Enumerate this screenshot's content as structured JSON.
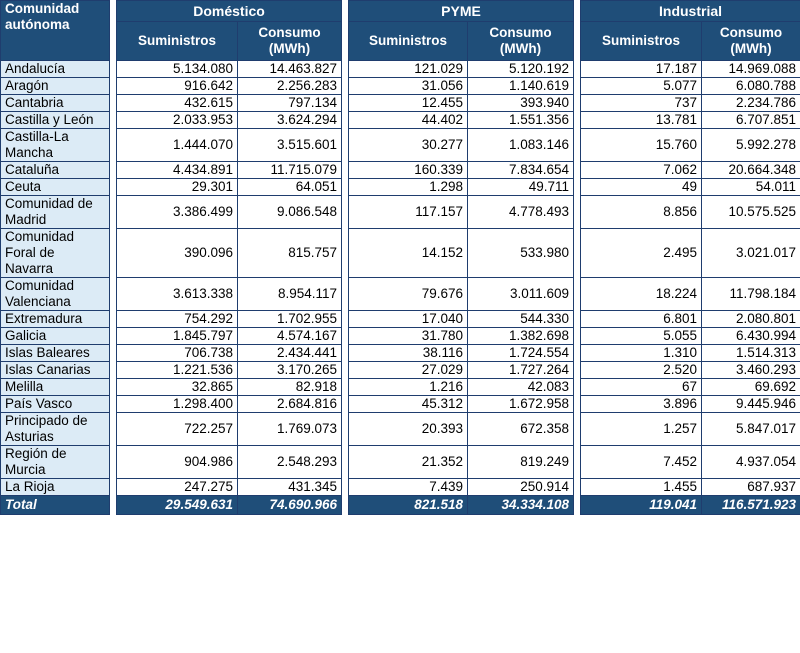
{
  "header": {
    "region_col": "Comunidad autónoma",
    "groups": [
      "Doméstico",
      "PYME",
      "Industrial"
    ],
    "sub_suministros": "Suministros",
    "sub_consumo": "Consumo (MWh)"
  },
  "rows": [
    {
      "region": "Andalucía",
      "values": [
        "5.134.080",
        "14.463.827",
        "121.029",
        "5.120.192",
        "17.187",
        "14.969.088"
      ]
    },
    {
      "region": "Aragón",
      "values": [
        "916.642",
        "2.256.283",
        "31.056",
        "1.140.619",
        "5.077",
        "6.080.788"
      ]
    },
    {
      "region": "Cantabria",
      "values": [
        "432.615",
        "797.134",
        "12.455",
        "393.940",
        "737",
        "2.234.786"
      ]
    },
    {
      "region": "Castilla y León",
      "values": [
        "2.033.953",
        "3.624.294",
        "44.402",
        "1.551.356",
        "13.781",
        "6.707.851"
      ]
    },
    {
      "region": "Castilla-La Mancha",
      "values": [
        "1.444.070",
        "3.515.601",
        "30.277",
        "1.083.146",
        "15.760",
        "5.992.278"
      ]
    },
    {
      "region": "Cataluña",
      "values": [
        "4.434.891",
        "11.715.079",
        "160.339",
        "7.834.654",
        "7.062",
        "20.664.348"
      ]
    },
    {
      "region": "Ceuta",
      "values": [
        "29.301",
        "64.051",
        "1.298",
        "49.711",
        "49",
        "54.011"
      ]
    },
    {
      "region": "Comunidad de Madrid",
      "values": [
        "3.386.499",
        "9.086.548",
        "117.157",
        "4.778.493",
        "8.856",
        "10.575.525"
      ]
    },
    {
      "region": "Comunidad Foral de Navarra",
      "values": [
        "390.096",
        "815.757",
        "14.152",
        "533.980",
        "2.495",
        "3.021.017"
      ]
    },
    {
      "region": "Comunidad Valenciana",
      "values": [
        "3.613.338",
        "8.954.117",
        "79.676",
        "3.011.609",
        "18.224",
        "11.798.184"
      ]
    },
    {
      "region": "Extremadura",
      "values": [
        "754.292",
        "1.702.955",
        "17.040",
        "544.330",
        "6.801",
        "2.080.801"
      ]
    },
    {
      "region": "Galicia",
      "values": [
        "1.845.797",
        "4.574.167",
        "31.780",
        "1.382.698",
        "5.055",
        "6.430.994"
      ]
    },
    {
      "region": "Islas Baleares",
      "values": [
        "706.738",
        "2.434.441",
        "38.116",
        "1.724.554",
        "1.310",
        "1.514.313"
      ]
    },
    {
      "region": "Islas Canarias",
      "values": [
        "1.221.536",
        "3.170.265",
        "27.029",
        "1.727.264",
        "2.520",
        "3.460.293"
      ]
    },
    {
      "region": "Melilla",
      "values": [
        "32.865",
        "82.918",
        "1.216",
        "42.083",
        "67",
        "69.692"
      ]
    },
    {
      "region": "País Vasco",
      "values": [
        "1.298.400",
        "2.684.816",
        "45.312",
        "1.672.958",
        "3.896",
        "9.445.946"
      ]
    },
    {
      "region": "Principado de Asturias",
      "values": [
        "722.257",
        "1.769.073",
        "20.393",
        "672.358",
        "1.257",
        "5.847.017"
      ]
    },
    {
      "region": "Región de Murcia",
      "values": [
        "904.986",
        "2.548.293",
        "21.352",
        "819.249",
        "7.452",
        "4.937.054"
      ]
    },
    {
      "region": "La Rioja",
      "values": [
        "247.275",
        "431.345",
        "7.439",
        "250.914",
        "1.455",
        "687.937"
      ]
    }
  ],
  "total": {
    "label": "Total",
    "values": [
      "29.549.631",
      "74.690.966",
      "821.518",
      "34.334.108",
      "119.041",
      "116.571.923"
    ]
  }
}
